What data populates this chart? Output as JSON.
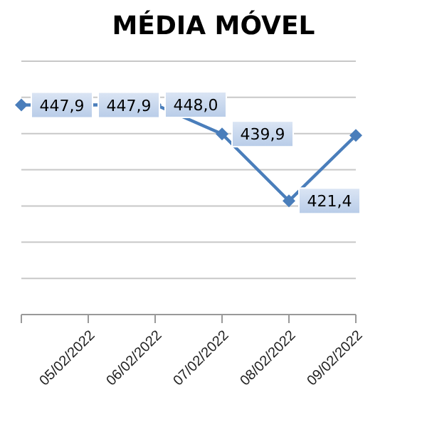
{
  "chart_data": {
    "type": "line",
    "title": "MÉDIA MÓVEL",
    "categories": [
      null,
      "05/02/2022",
      "06/02/2022",
      "07/02/2022",
      "08/02/2022",
      "09/02/2022"
    ],
    "series": [
      {
        "color": "#4a7ebb",
        "values": [
          447.9,
          447.9,
          448.0,
          439.9,
          421.4,
          439.5
        ],
        "value_labels": [
          "447,9",
          "447,9",
          "448,0",
          "439,9",
          "421,4",
          null
        ]
      }
    ],
    "ylim": [
      390,
      460
    ],
    "yticks": [
      {
        "value": 390,
        "label": null
      },
      {
        "value": 400,
        "label": null
      },
      {
        "value": 410,
        "label": null
      },
      {
        "value": 420,
        "label": null
      },
      {
        "value": 430,
        "label": null
      },
      {
        "value": 440,
        "label": null
      },
      {
        "value": 450,
        "label": null
      },
      {
        "value": 460,
        "label": null
      }
    ],
    "tick_labels": "x",
    "grid": "y",
    "marker": "diamond",
    "legend": false
  }
}
